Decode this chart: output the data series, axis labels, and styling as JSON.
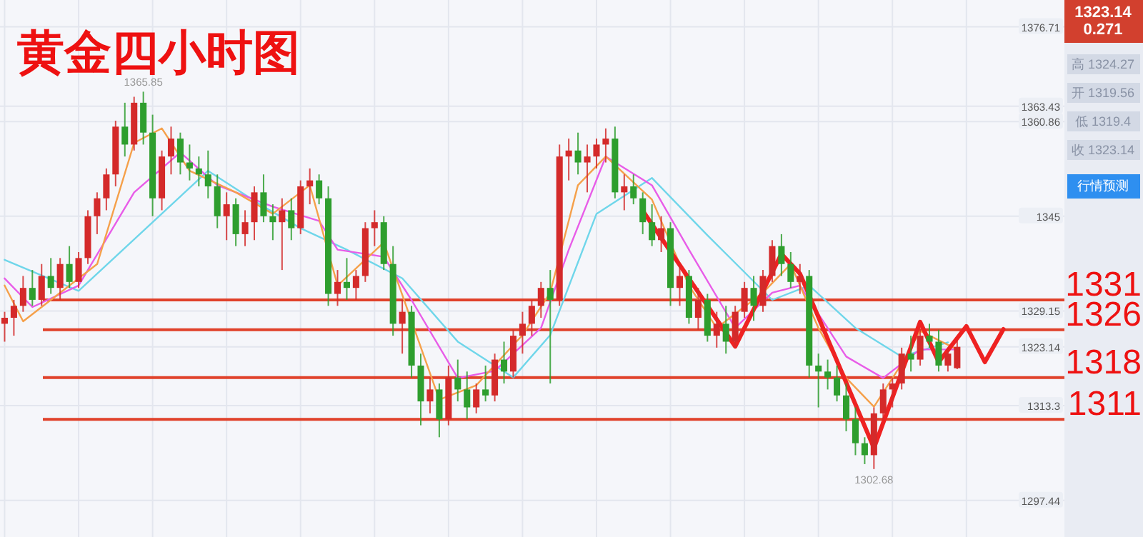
{
  "chart_data": {
    "type": "candlestick",
    "title": "黄金四小时图",
    "categories": [
      null,
      null,
      null,
      null,
      null,
      null,
      null,
      null,
      null,
      null,
      null,
      null,
      null,
      null,
      null,
      null,
      null,
      null,
      null,
      null,
      null,
      null,
      null,
      null,
      null,
      null,
      null,
      null,
      null,
      null,
      null,
      null,
      null,
      null,
      null,
      null,
      null,
      null,
      null,
      null,
      null,
      null,
      null,
      null,
      null,
      null,
      null,
      null,
      null,
      null,
      null,
      null,
      null,
      null,
      null,
      null,
      null,
      null,
      null,
      null,
      null,
      null,
      null,
      null,
      null,
      null,
      null,
      null,
      null,
      null,
      null,
      null,
      null,
      null,
      null,
      null,
      null,
      null,
      null,
      null,
      null,
      null,
      null,
      null,
      null,
      null,
      null,
      null,
      null,
      null,
      null,
      null,
      null,
      null,
      null,
      null,
      null,
      null,
      null,
      null,
      null,
      null,
      null,
      null,
      null,
      null,
      null,
      null,
      null,
      null
    ],
    "ohlc": [
      [
        1327,
        1329,
        1324,
        1328
      ],
      [
        1328,
        1331,
        1325,
        1330
      ],
      [
        1330,
        1335,
        1329,
        1333
      ],
      [
        1333,
        1336,
        1330,
        1331
      ],
      [
        1331,
        1337,
        1330,
        1335
      ],
      [
        1335,
        1338,
        1332,
        1333
      ],
      [
        1333,
        1338,
        1331,
        1337
      ],
      [
        1337,
        1340,
        1333,
        1334
      ],
      [
        1334,
        1339,
        1333,
        1338
      ],
      [
        1338,
        1346,
        1337,
        1345
      ],
      [
        1345,
        1349,
        1342,
        1348
      ],
      [
        1348,
        1353,
        1346,
        1352
      ],
      [
        1352,
        1361,
        1350,
        1360
      ],
      [
        1360,
        1364,
        1355,
        1357
      ],
      [
        1357,
        1365,
        1356,
        1364
      ],
      [
        1364,
        1365.85,
        1357,
        1359
      ],
      [
        1359,
        1362,
        1345,
        1348
      ],
      [
        1348,
        1356,
        1346,
        1355
      ],
      [
        1355,
        1360,
        1352,
        1358
      ],
      [
        1358,
        1359,
        1352,
        1354
      ],
      [
        1354,
        1357,
        1351,
        1353
      ],
      [
        1353,
        1355,
        1350,
        1352
      ],
      [
        1352,
        1356,
        1348,
        1350
      ],
      [
        1350,
        1352,
        1343,
        1345
      ],
      [
        1345,
        1349,
        1341,
        1347
      ],
      [
        1347,
        1348,
        1340,
        1342
      ],
      [
        1342,
        1346,
        1340,
        1344
      ],
      [
        1344,
        1350,
        1341,
        1349
      ],
      [
        1349,
        1352,
        1344,
        1345
      ],
      [
        1345,
        1347,
        1341,
        1344
      ],
      [
        1344,
        1348,
        1336,
        1346
      ],
      [
        1346,
        1348,
        1341,
        1343
      ],
      [
        1343,
        1351,
        1342,
        1350
      ],
      [
        1350,
        1353,
        1347,
        1351
      ],
      [
        1351,
        1352,
        1347,
        1348
      ],
      [
        1348,
        1350,
        1330,
        1332
      ],
      [
        1332,
        1336,
        1330,
        1334
      ],
      [
        1334,
        1338,
        1331,
        1333
      ],
      [
        1333,
        1336,
        1331,
        1335
      ],
      [
        1335,
        1344,
        1334,
        1343
      ],
      [
        1343,
        1346,
        1340,
        1344
      ],
      [
        1344,
        1345,
        1336,
        1337
      ],
      [
        1337,
        1340,
        1325,
        1327
      ],
      [
        1327,
        1331,
        1322,
        1329
      ],
      [
        1329,
        1330,
        1318,
        1320
      ],
      [
        1320,
        1322,
        1310,
        1314
      ],
      [
        1314,
        1318,
        1312,
        1316
      ],
      [
        1316,
        1317,
        1308,
        1311
      ],
      [
        1311,
        1320,
        1310,
        1318
      ],
      [
        1318,
        1321,
        1314,
        1316
      ],
      [
        1316,
        1319,
        1311,
        1313
      ],
      [
        1313,
        1317,
        1312,
        1316
      ],
      [
        1316,
        1320,
        1314,
        1315
      ],
      [
        1315,
        1322,
        1314,
        1321
      ],
      [
        1321,
        1324,
        1317,
        1319
      ],
      [
        1319,
        1326,
        1318,
        1325
      ],
      [
        1325,
        1329,
        1322,
        1327
      ],
      [
        1327,
        1331,
        1325,
        1330
      ],
      [
        1330,
        1334,
        1328,
        1333
      ],
      [
        1333,
        1336,
        1317,
        1331
      ],
      [
        1331,
        1357,
        1330,
        1355
      ],
      [
        1355,
        1358,
        1351,
        1356
      ],
      [
        1356,
        1359,
        1352,
        1354
      ],
      [
        1354,
        1357,
        1349,
        1355
      ],
      [
        1355,
        1358,
        1353,
        1357
      ],
      [
        1357,
        1359.7,
        1354,
        1358
      ],
      [
        1358,
        1360,
        1348,
        1349
      ],
      [
        1349,
        1352,
        1346,
        1350
      ],
      [
        1350,
        1352,
        1347,
        1348
      ],
      [
        1348,
        1349,
        1342,
        1344
      ],
      [
        1344,
        1347,
        1340,
        1341
      ],
      [
        1341,
        1345,
        1339,
        1343
      ],
      [
        1343,
        1344,
        1330,
        1333
      ],
      [
        1333,
        1337,
        1330,
        1335
      ],
      [
        1335,
        1336,
        1327,
        1328
      ],
      [
        1328,
        1333,
        1326,
        1331
      ],
      [
        1331,
        1332,
        1324,
        1325
      ],
      [
        1325,
        1329,
        1323,
        1327
      ],
      [
        1327,
        1330,
        1322,
        1324
      ],
      [
        1324,
        1330,
        1323,
        1329
      ],
      [
        1329,
        1334,
        1328,
        1333
      ],
      [
        1333,
        1335,
        1327.5,
        1330
      ],
      [
        1330,
        1336,
        1329,
        1335
      ],
      [
        1335,
        1341,
        1334,
        1340
      ],
      [
        1340,
        1342,
        1335,
        1337
      ],
      [
        1337,
        1339,
        1333,
        1334
      ],
      [
        1334,
        1337,
        1332,
        1335
      ],
      [
        1335,
        1336,
        1318,
        1320
      ],
      [
        1320,
        1322,
        1313,
        1319
      ],
      [
        1319,
        1321,
        1316,
        1318
      ],
      [
        1318,
        1320,
        1314,
        1315
      ],
      [
        1315,
        1317,
        1309,
        1311
      ],
      [
        1311,
        1313,
        1305,
        1307
      ],
      [
        1307,
        1308,
        1303.5,
        1305
      ],
      [
        1305,
        1313,
        1302.68,
        1312
      ],
      [
        1312,
        1317,
        1311,
        1316
      ],
      [
        1316,
        1318,
        1313,
        1317
      ],
      [
        1317,
        1323,
        1316,
        1322
      ],
      [
        1322,
        1325,
        1319,
        1321
      ],
      [
        1321,
        1326,
        1320,
        1325
      ],
      [
        1325,
        1327,
        1323,
        1324
      ],
      [
        1324,
        1326,
        1319,
        1320
      ],
      [
        1320,
        1323,
        1319,
        1322
      ],
      [
        1319.56,
        1324.27,
        1319.4,
        1323.14
      ],
      null,
      null,
      null,
      null,
      null,
      null
    ],
    "series": [
      {
        "type": "line",
        "color": "#6fd6ea",
        "values": [
          1337.7,
          null,
          null,
          null,
          null,
          null,
          null,
          null,
          1332.5,
          null,
          null,
          null,
          null,
          null,
          null,
          null,
          null,
          null,
          null,
          null,
          null,
          null,
          1352.6,
          null,
          null,
          null,
          null,
          null,
          1346.6,
          null,
          null,
          null,
          1343.0,
          null,
          null,
          null,
          null,
          1339.4,
          null,
          null,
          null,
          null,
          null,
          1334.6,
          null,
          null,
          null,
          null,
          null,
          1324.0,
          null,
          null,
          null,
          null,
          null,
          1318.0,
          null,
          null,
          null,
          1325.1,
          null,
          null,
          null,
          null,
          1345.4,
          null,
          null,
          null,
          null,
          null,
          1351.4,
          null,
          null,
          null,
          null,
          null,
          1341.8,
          null,
          null,
          null,
          null,
          null,
          null,
          1331.0,
          null,
          null,
          null,
          1333.4,
          null,
          null,
          null,
          null,
          1326.3,
          null,
          null,
          null,
          null,
          1321.5,
          null,
          null,
          null,
          null,
          1323.9,
          null,
          null,
          null,
          null,
          null,
          null,
          null
        ]
      },
      {
        "type": "line",
        "color": "#e85ce8",
        "values": [
          1334.6,
          null,
          null,
          1329.8,
          null,
          null,
          null,
          null,
          1333.4,
          null,
          null,
          null,
          null,
          null,
          1349.0,
          null,
          null,
          null,
          null,
          1355.7,
          null,
          null,
          null,
          1350.2,
          null,
          null,
          null,
          null,
          null,
          1346.6,
          null,
          null,
          null,
          null,
          1344.2,
          null,
          1339.4,
          null,
          null,
          null,
          null,
          1338.2,
          null,
          null,
          1331.0,
          null,
          null,
          null,
          null,
          1317.9,
          null,
          null,
          null,
          1319.1,
          null,
          null,
          null,
          null,
          1326.3,
          null,
          null,
          1339.4,
          null,
          null,
          null,
          1355.0,
          null,
          null,
          null,
          null,
          1350.2,
          null,
          null,
          null,
          1339.4,
          null,
          null,
          null,
          null,
          1326.3,
          null,
          null,
          null,
          1332.2,
          null,
          null,
          1333.4,
          null,
          null,
          null,
          null,
          1321.5,
          null,
          null,
          null,
          1317.9,
          null,
          null,
          null,
          1322.7,
          null,
          null,
          null,
          1322.7,
          null,
          null,
          null,
          null,
          null,
          null
        ]
      },
      {
        "type": "line",
        "color": "#f5a04a",
        "values": [
          1333.4,
          null,
          1327.4,
          null,
          null,
          1331.0,
          null,
          null,
          null,
          null,
          1337.0,
          null,
          null,
          null,
          1357.3,
          null,
          null,
          1359.7,
          null,
          null,
          1352.6,
          null,
          null,
          null,
          null,
          1349.0,
          null,
          null,
          null,
          1345.4,
          null,
          null,
          null,
          1350.2,
          null,
          null,
          1333.4,
          null,
          null,
          null,
          null,
          1340.6,
          null,
          null,
          null,
          null,
          null,
          1314.3,
          null,
          null,
          null,
          1316.7,
          null,
          null,
          null,
          null,
          1325.1,
          null,
          null,
          1332.2,
          null,
          null,
          1350.2,
          null,
          null,
          1355.0,
          null,
          null,
          null,
          null,
          1347.8,
          null,
          null,
          null,
          1333.4,
          null,
          null,
          1326.3,
          null,
          null,
          null,
          null,
          1332.2,
          null,
          null,
          1337.0,
          null,
          null,
          1326.3,
          null,
          null,
          1317.9,
          null,
          null,
          1313.1,
          null,
          null,
          1320.3,
          null,
          1325.8,
          null,
          null,
          null,
          1322.7,
          null,
          null,
          null,
          null,
          null,
          null
        ]
      },
      {
        "type": "line",
        "color": "#ee2222",
        "values": [
          null,
          null,
          null,
          null,
          null,
          null,
          null,
          null,
          null,
          null,
          null,
          null,
          null,
          null,
          null,
          null,
          null,
          null,
          null,
          null,
          null,
          null,
          null,
          null,
          null,
          null,
          null,
          null,
          null,
          null,
          null,
          null,
          null,
          null,
          null,
          null,
          null,
          null,
          null,
          null,
          null,
          null,
          null,
          null,
          null,
          null,
          null,
          null,
          null,
          null,
          null,
          null,
          null,
          null,
          null,
          null,
          null,
          null,
          null,
          null,
          null,
          null,
          null,
          null,
          null,
          null,
          null,
          null,
          null,
          1345.9,
          null,
          null,
          null,
          null,
          null,
          null,
          null,
          null,
          null,
          1323.2,
          null,
          null,
          null,
          null,
          1338.7,
          null,
          1335.4,
          null,
          null,
          null,
          null,
          null,
          null,
          null,
          1306.2,
          null,
          null,
          null,
          null,
          1327.3,
          null,
          1320.6,
          null,
          null,
          1326.6,
          null,
          1320.6,
          null,
          1326.1,
          null
        ]
      }
    ],
    "ylim": [
      1291.3,
      1381.2
    ],
    "yticks": [
      1376.71,
      1363.43,
      1360.86,
      1345,
      1329.15,
      1323.14,
      1313.3,
      1297.44
    ],
    "grid": true,
    "ref_lines": [
      {
        "axis": "y",
        "value": 1331,
        "label": "1331",
        "color": "#e0412a"
      },
      {
        "axis": "y",
        "value": 1326,
        "label": "1326",
        "color": "#e0412a"
      },
      {
        "axis": "y",
        "value": 1318,
        "label": "1318",
        "color": "#e0412a"
      },
      {
        "axis": "y",
        "value": 1311,
        "label": "1311",
        "color": "#e0412a"
      }
    ],
    "annotations": [
      {
        "text": "1365.85",
        "y": 1365.85
      },
      {
        "text": "1302.68",
        "y": 1302.68
      },
      "1323.14",
      "0.271",
      "高 1324.27",
      "开 1319.56",
      "低 1319.4",
      "收 1323.14",
      "行情预测"
    ]
  }
}
